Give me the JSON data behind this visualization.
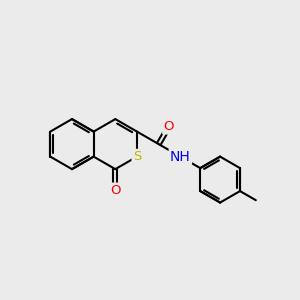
{
  "background_color": "#ebebeb",
  "bond_color": "#000000",
  "bond_width": 1.5,
  "atom_colors": {
    "O": "#ff0000",
    "S": "#bbbb00",
    "N": "#0000ee",
    "C": "#000000",
    "H": "#000000"
  },
  "font_size": 9.5,
  "fig_size": [
    3.0,
    3.0
  ],
  "dpi": 100
}
